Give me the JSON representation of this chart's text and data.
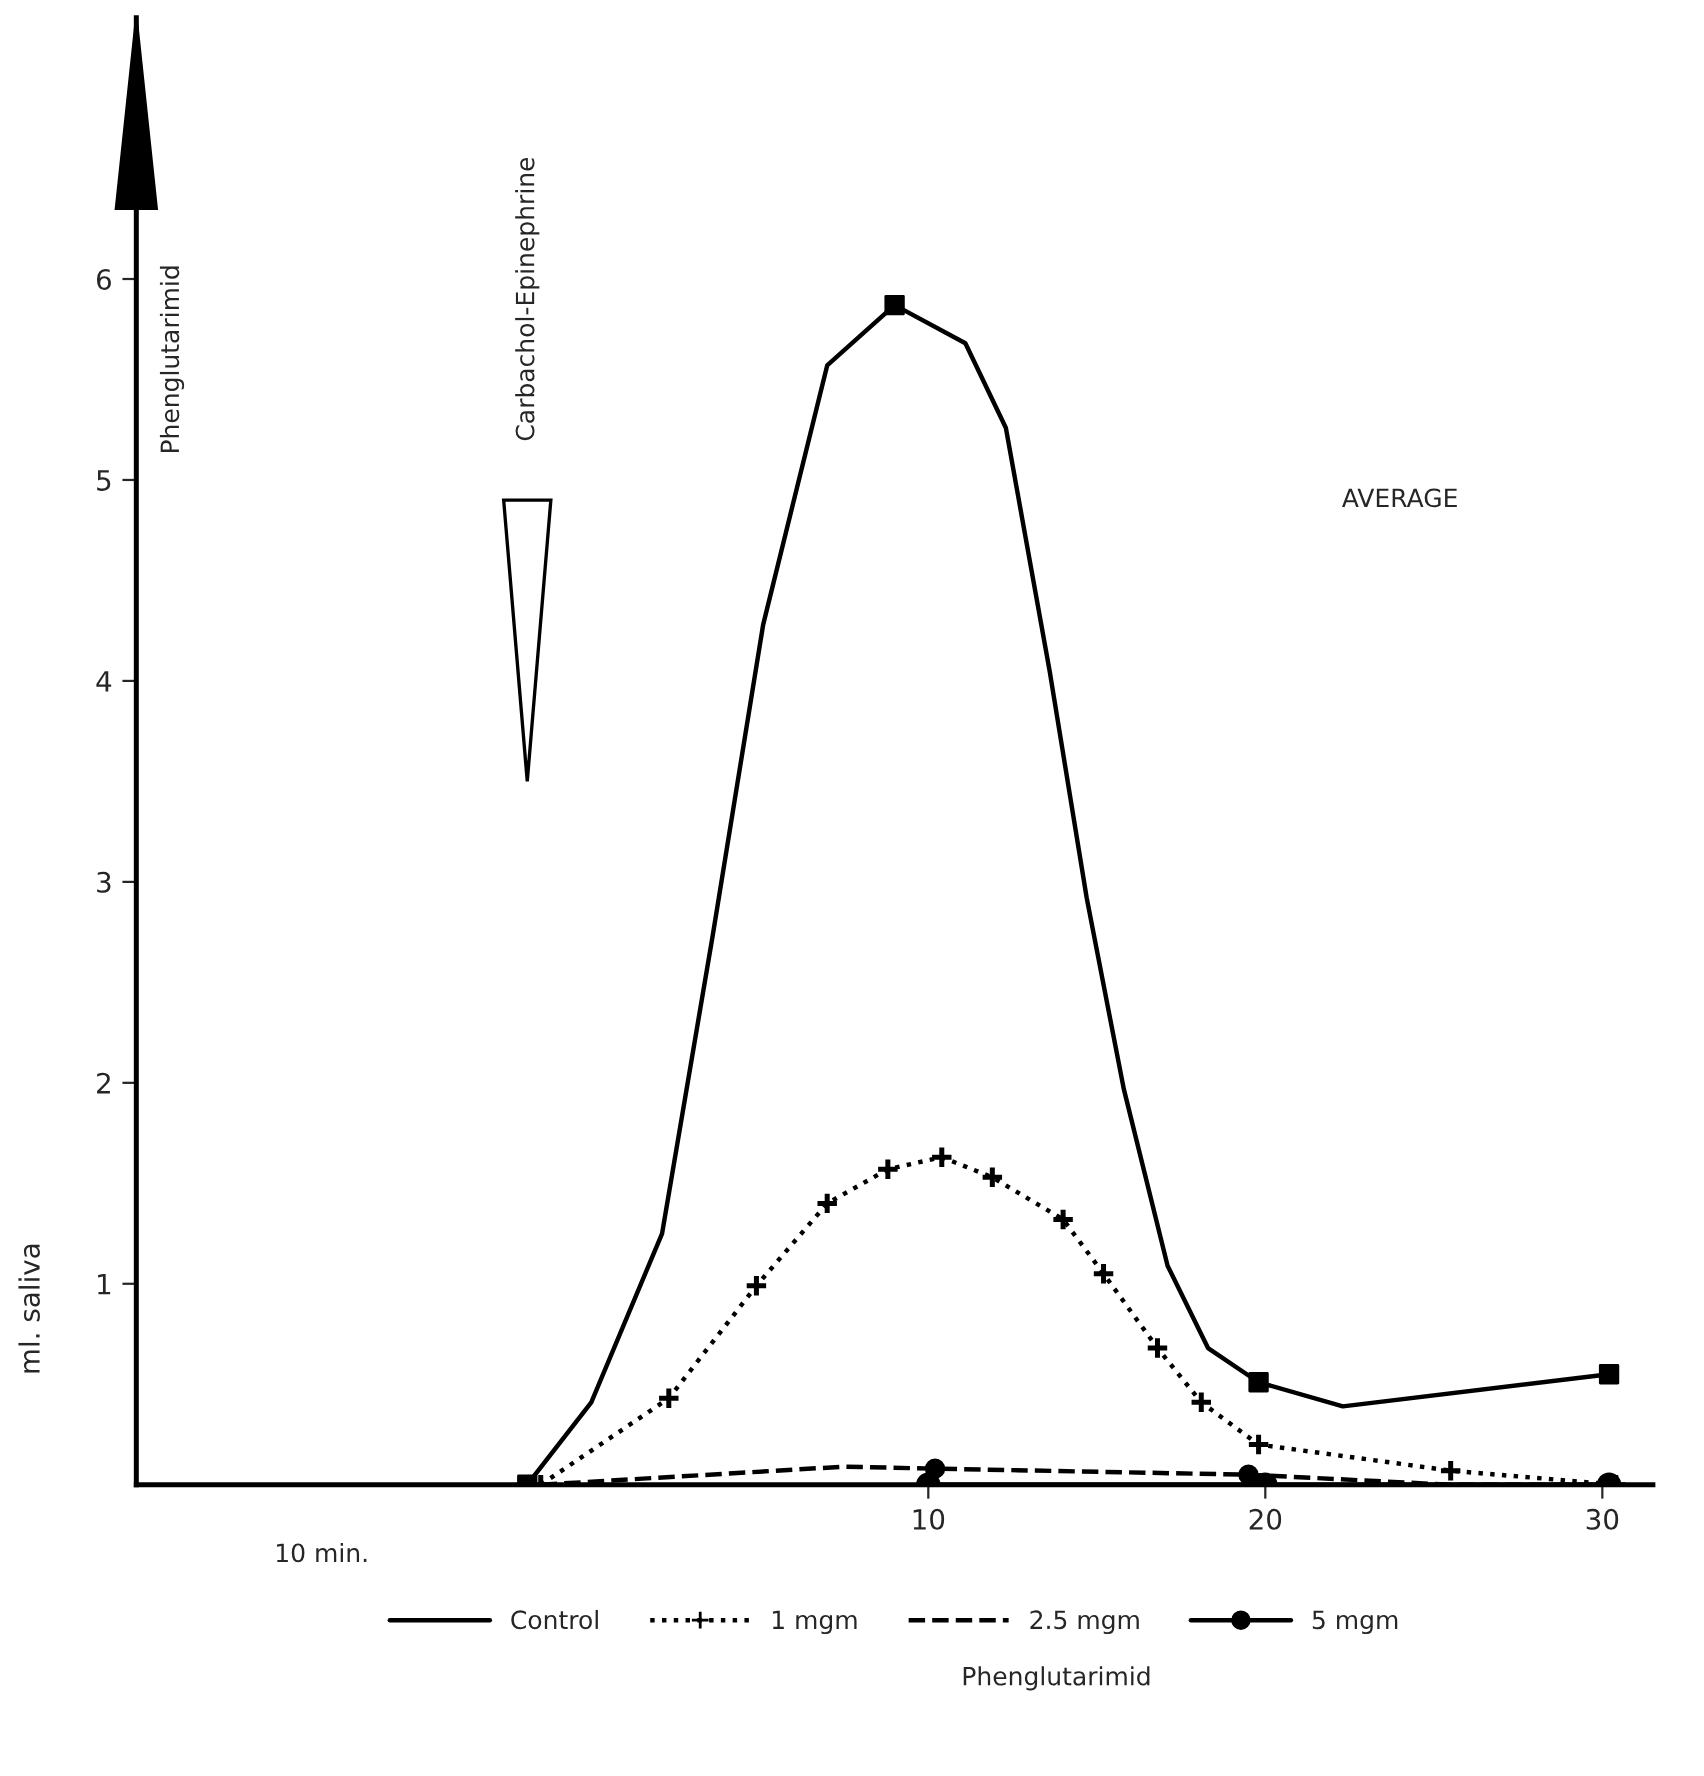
{
  "chart_data": {
    "type": "line",
    "ylabel": "ml. saliva",
    "xlim": [
      -13.5,
      31.5
    ],
    "xticks": [
      10,
      20,
      30
    ],
    "ylim": [
      0,
      7.3
    ],
    "yticks": [
      1,
      2,
      3,
      4,
      5,
      6
    ],
    "legend": "bottom",
    "annotations": [
      "Phenglutarimid",
      "Carbachol-Epinephrine",
      "AVERAGE",
      "10 min.",
      "Phenglutarimid"
    ],
    "series": [
      {
        "name": "Control",
        "color": "#000000",
        "line_style": "solid",
        "marker": "none",
        "x": [
          -1.9,
          0,
          2.1,
          3.6,
          5.1,
          7.0,
          9.0,
          11.1,
          12.3,
          13.6,
          14.7,
          15.8,
          17.1,
          18.3,
          19.8,
          22.3,
          30.2
        ],
        "values": [
          0,
          0.41,
          1.25,
          2.73,
          4.28,
          5.57,
          5.87,
          5.68,
          5.26,
          4.05,
          2.92,
          1.97,
          1.09,
          0.68,
          0.51,
          0.39,
          0.55
        ]
      },
      {
        "type": "scatter",
        "color": "#000000",
        "marker": "square",
        "x": [
          -1.9,
          9.0,
          19.8,
          30.2
        ],
        "values": [
          0,
          5.87,
          0.51,
          0.55
        ]
      },
      {
        "name": "1 mgm",
        "color": "#000000",
        "line_style": "dotted",
        "marker": "cross",
        "x": [
          -1.5,
          2.3,
          4.9,
          7.0,
          8.8,
          10.4,
          11.9,
          14.0,
          15.2,
          16.8,
          18.1,
          19.8,
          25.5,
          30.4
        ],
        "values": [
          0,
          0.43,
          0.99,
          1.4,
          1.57,
          1.63,
          1.53,
          1.32,
          1.05,
          0.68,
          0.41,
          0.2,
          0.07,
          0
        ]
      },
      {
        "name": "2.5 mgm",
        "color": "#000000",
        "line_style": "dashed",
        "marker": "none",
        "x": [
          -1.5,
          7.5,
          10.2,
          19.5,
          25.5,
          30.4
        ],
        "values": [
          0,
          0.09,
          0.08,
          0.05,
          0,
          0
        ]
      },
      {
        "type": "scatter",
        "color": "#000000",
        "marker": "circle",
        "x": [
          10.2,
          19.5
        ],
        "values": [
          0.08,
          0.05
        ]
      },
      {
        "name": "5 mgm",
        "color": "#000000",
        "line_style": "solid",
        "marker": "circle",
        "x": [
          10,
          20,
          30.2
        ],
        "values": [
          0,
          0,
          0
        ]
      }
    ]
  }
}
